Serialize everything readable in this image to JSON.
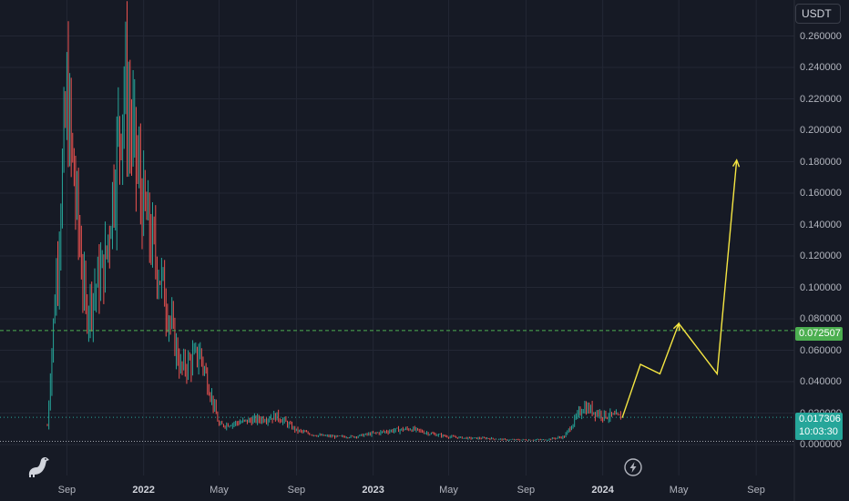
{
  "quote_currency": "USDT",
  "y_axis": {
    "ticks": [
      "0.260000",
      "0.240000",
      "0.220000",
      "0.200000",
      "0.180000",
      "0.160000",
      "0.140000",
      "0.120000",
      "0.100000",
      "0.080000",
      "0.060000",
      "0.040000",
      "0.020000",
      "0.000000"
    ]
  },
  "x_axis": {
    "labels": [
      {
        "text": "Sep",
        "bold": false
      },
      {
        "text": "2022",
        "bold": true
      },
      {
        "text": "May",
        "bold": false
      },
      {
        "text": "Sep",
        "bold": false
      },
      {
        "text": "2023",
        "bold": true
      },
      {
        "text": "May",
        "bold": false
      },
      {
        "text": "Sep",
        "bold": false
      },
      {
        "text": "2024",
        "bold": true
      },
      {
        "text": "May",
        "bold": false
      },
      {
        "text": "Sep",
        "bold": false
      }
    ]
  },
  "price_tags": {
    "target_price": "0.072507",
    "last_price": "0.017306",
    "countdown": "10:03:30"
  },
  "colors": {
    "background": "#161a25",
    "up": "#26a69a",
    "down": "#ef5350",
    "projection": "#f5e642",
    "target_tag": "#4caf50",
    "last_tag": "#26a69a"
  },
  "icons": {
    "logo": "tradingview-dino-icon",
    "replay": "lightning-icon"
  },
  "chart_data": {
    "type": "line",
    "title": "",
    "xlabel": "",
    "ylabel": "",
    "ylim": [
      0,
      0.28
    ],
    "grid": true,
    "x_range": [
      "2021-08",
      "2024-10"
    ],
    "series": [
      {
        "kind": "candlestick-price",
        "x": [
          "2021-08",
          "2021-09",
          "2021-10",
          "2021-11",
          "2021-12",
          "2022-01",
          "2022-02",
          "2022-03",
          "2022-04",
          "2022-05",
          "2022-06",
          "2022-07",
          "2022-08",
          "2022-09",
          "2022-10",
          "2022-11",
          "2022-12",
          "2023-01",
          "2023-02",
          "2023-03",
          "2023-04",
          "2023-05",
          "2023-06",
          "2023-07",
          "2023-08",
          "2023-09",
          "2023-10",
          "2023-11",
          "2023-12",
          "2024-01",
          "2024-02"
        ],
        "values": [
          0.012,
          0.22,
          0.085,
          0.115,
          0.23,
          0.15,
          0.1,
          0.048,
          0.058,
          0.012,
          0.014,
          0.016,
          0.018,
          0.009,
          0.006,
          0.005,
          0.005,
          0.007,
          0.009,
          0.01,
          0.007,
          0.005,
          0.004,
          0.004,
          0.003,
          0.003,
          0.003,
          0.005,
          0.024,
          0.019,
          0.017
        ]
      },
      {
        "kind": "projection",
        "x": [
          "2024-02",
          "2024-03",
          "2024-04",
          "2024-05",
          "2024-07",
          "2024-08"
        ],
        "values": [
          0.017,
          0.051,
          0.045,
          0.077,
          0.045,
          0.181
        ]
      }
    ],
    "horizontal_lines": [
      0.072507,
      0.017306
    ]
  }
}
